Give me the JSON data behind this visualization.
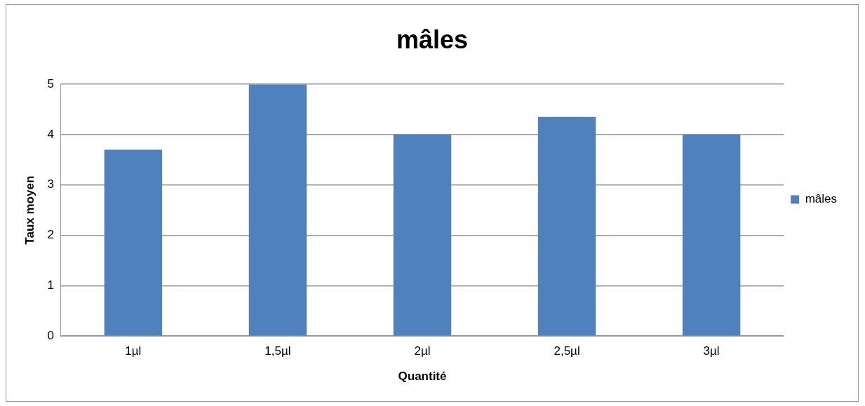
{
  "chart_data": {
    "type": "bar",
    "title": "mâles",
    "xlabel": "Quantité",
    "ylabel": "Taux moyen",
    "categories": [
      "1µl",
      "1,5µl",
      "2µl",
      "2,5µl",
      "3µl"
    ],
    "series": [
      {
        "name": "mâles",
        "color": "#4f81bd",
        "values": [
          3.7,
          5,
          4,
          4.35,
          4
        ]
      }
    ],
    "ylim": [
      0,
      5
    ],
    "yticks": [
      0,
      1,
      2,
      3,
      4,
      5
    ],
    "grid": "y",
    "legend": "right"
  }
}
